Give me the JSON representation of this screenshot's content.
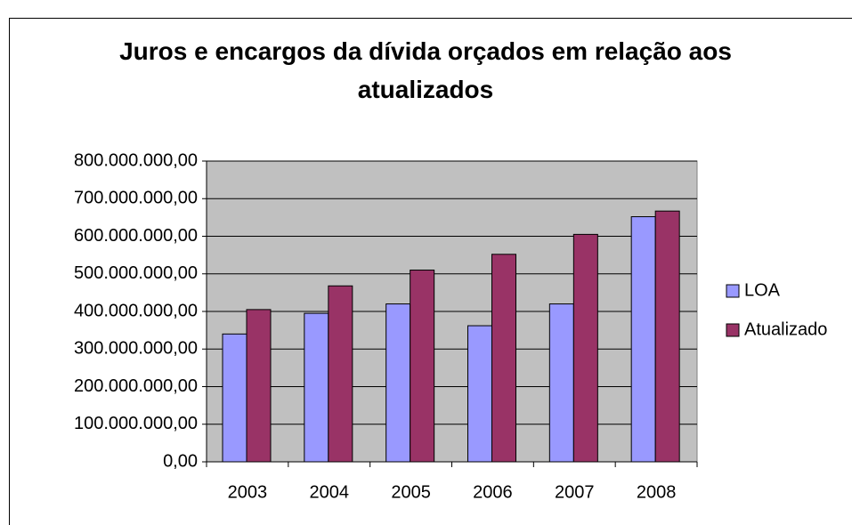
{
  "chart_data": {
    "type": "bar",
    "title": "Juros e encargos da dívida orçados em relação aos atualizados",
    "categories": [
      "2003",
      "2004",
      "2005",
      "2006",
      "2007",
      "2008"
    ],
    "series": [
      {
        "name": "LOA",
        "color": "#9999ff",
        "values": [
          340000000,
          395000000,
          420000000,
          362000000,
          420000000,
          652000000
        ]
      },
      {
        "name": "Atualizado",
        "color": "#993366",
        "values": [
          405000000,
          468000000,
          510000000,
          552000000,
          605000000,
          667000000
        ]
      }
    ],
    "ylim": [
      0,
      800000000
    ],
    "yticks": [
      {
        "value": 0,
        "label": "0,00"
      },
      {
        "value": 100000000,
        "label": "100.000.000,00"
      },
      {
        "value": 200000000,
        "label": "200.000.000,00"
      },
      {
        "value": 300000000,
        "label": "300.000.000,00"
      },
      {
        "value": 400000000,
        "label": "400.000.000,00"
      },
      {
        "value": 500000000,
        "label": "500.000.000,00"
      },
      {
        "value": 600000000,
        "label": "600.000.000,00"
      },
      {
        "value": 700000000,
        "label": "700.000.000,00"
      },
      {
        "value": 800000000,
        "label": "800.000.000,00"
      }
    ],
    "grid": true,
    "legend": "right"
  }
}
